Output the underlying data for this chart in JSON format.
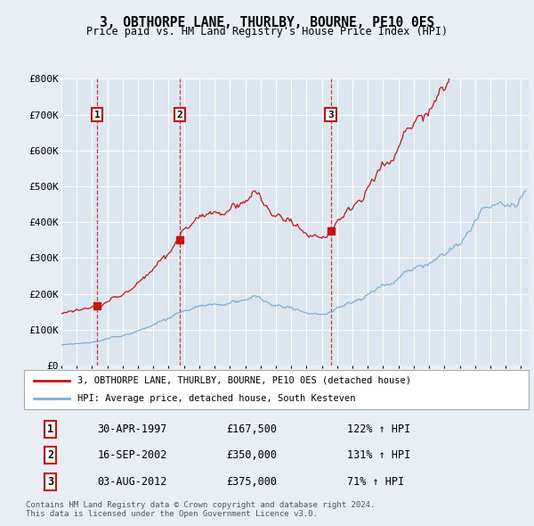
{
  "title": "3, OBTHORPE LANE, THURLBY, BOURNE, PE10 0ES",
  "subtitle": "Price paid vs. HM Land Registry's House Price Index (HPI)",
  "legend_line1": "3, OBTHORPE LANE, THURLBY, BOURNE, PE10 0ES (detached house)",
  "legend_line2": "HPI: Average price, detached house, South Kesteven",
  "sale1_label": "1",
  "sale1_date": "30-APR-1997",
  "sale1_price": "£167,500",
  "sale1_hpi": "122% ↑ HPI",
  "sale1_year": 1997.33,
  "sale1_value": 167500,
  "sale2_label": "2",
  "sale2_date": "16-SEP-2002",
  "sale2_price": "£350,000",
  "sale2_hpi": "131% ↑ HPI",
  "sale2_year": 2002.71,
  "sale2_value": 350000,
  "sale3_label": "3",
  "sale3_date": "03-AUG-2012",
  "sale3_price": "£375,000",
  "sale3_hpi": "71% ↑ HPI",
  "sale3_year": 2012.58,
  "sale3_value": 375000,
  "hpi_color": "#7bafd4",
  "sale_color": "#cc1111",
  "background_color": "#e8eef4",
  "chart_bg": "#dce6f0",
  "grid_color": "#c8d8e8",
  "ylim": [
    0,
    800000
  ],
  "xlim_start": 1995,
  "xlim_end": 2025.5,
  "footnote": "Contains HM Land Registry data © Crown copyright and database right 2024.\nThis data is licensed under the Open Government Licence v3.0."
}
